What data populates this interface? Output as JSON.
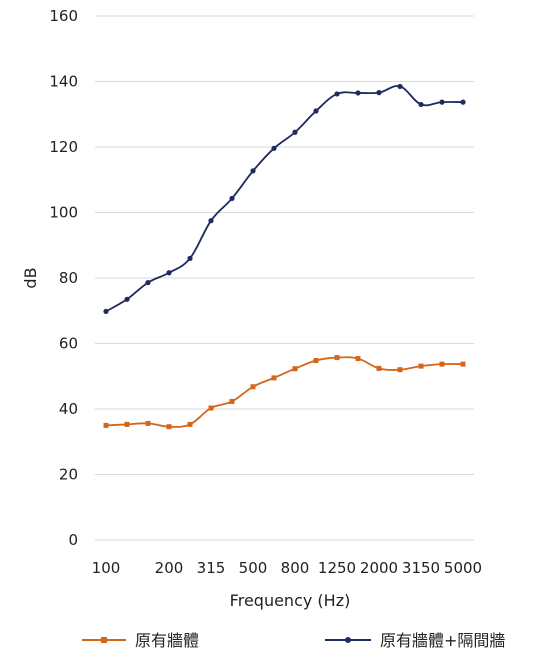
{
  "chart_data": {
    "type": "line",
    "title": "",
    "xlabel": "Frequency (Hz)",
    "ylabel": "dB",
    "ylim": [
      0,
      160
    ],
    "yticks": [
      0,
      20,
      40,
      60,
      80,
      100,
      120,
      140,
      160
    ],
    "categories": [
      "100",
      "125",
      "160",
      "200",
      "250",
      "315",
      "400",
      "500",
      "630",
      "800",
      "1000",
      "1250",
      "1600",
      "2000",
      "2500",
      "3150",
      "4000",
      "5000"
    ],
    "xtick_labels": [
      "100",
      "200",
      "315",
      "500",
      "800",
      "1250",
      "2000",
      "3150",
      "5000"
    ],
    "grid": "horizontal",
    "legend": "bottom",
    "series": [
      {
        "name": "原有牆體",
        "color": "#d4651b",
        "marker": "square",
        "values": [
          35,
          35.3,
          35.6,
          34.6,
          35.3,
          40.3,
          42.3,
          46.8,
          49.5,
          52.3,
          54.8,
          55.7,
          55.4,
          52.4,
          52.0,
          53.1,
          53.7,
          53.7
        ]
      },
      {
        "name": "原有牆體+隔間牆",
        "color": "#1f2a5e",
        "marker": "circle",
        "values": [
          69.8,
          73.5,
          78.6,
          81.6,
          86,
          97.5,
          104.3,
          112.7,
          119.6,
          124.5,
          131,
          136.2,
          136.5,
          136.6,
          138.5,
          133,
          133.7,
          133.7
        ]
      }
    ]
  }
}
